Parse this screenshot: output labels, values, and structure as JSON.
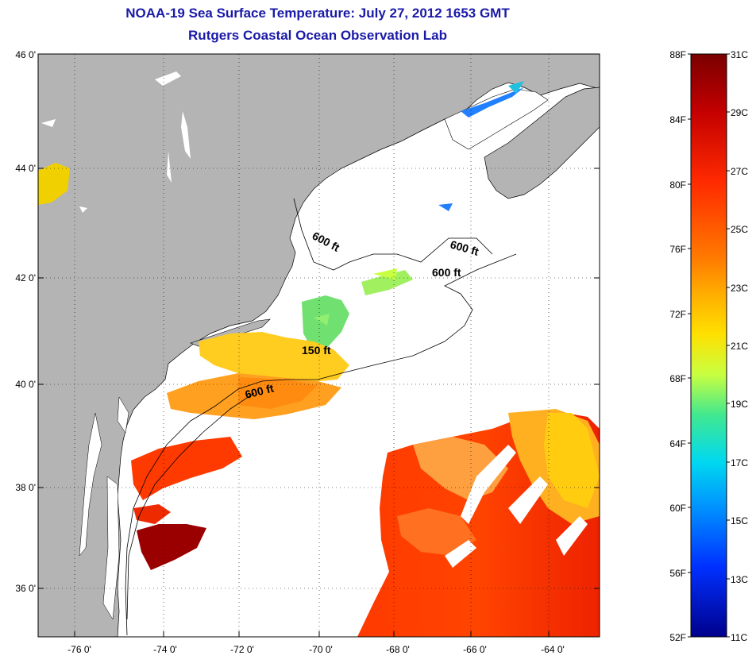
{
  "title": {
    "line1": "NOAA-19 Sea Surface Temperature:  July 27, 2012 1653 GMT",
    "line2": "Rutgers Coastal Ocean Observation Lab"
  },
  "map": {
    "lat_labels": [
      "46 0'",
      "44 0'",
      "42 0'",
      "40 0'",
      "38 0'",
      "36 0'"
    ],
    "lon_labels": [
      "-76 0'",
      "-74 0'",
      "-72 0'",
      "-70 0'",
      "-68 0'",
      "-66 0'",
      "-64 0'"
    ],
    "land_color": "#b4b4b4",
    "no_data_color": "#ffffff",
    "contour_labels": [
      "600 ft",
      "600 ft",
      "600 ft",
      "150 ft",
      "600 ft"
    ]
  },
  "colorbar": {
    "fahrenheit_labels": [
      "88F",
      "84F",
      "80F",
      "76F",
      "72F",
      "68F",
      "64F",
      "60F",
      "56F",
      "52F"
    ],
    "celsius_labels": [
      "31C",
      "29C",
      "27C",
      "25C",
      "23C",
      "21C",
      "19C",
      "17C",
      "15C",
      "13C",
      "11C"
    ],
    "colors": [
      "#7a0000",
      "#c40000",
      "#ff2a00",
      "#ff7a00",
      "#ffd000",
      "#c8ff40",
      "#40e890",
      "#00d0f0",
      "#0090ff",
      "#0030ff",
      "#00008c"
    ]
  }
}
